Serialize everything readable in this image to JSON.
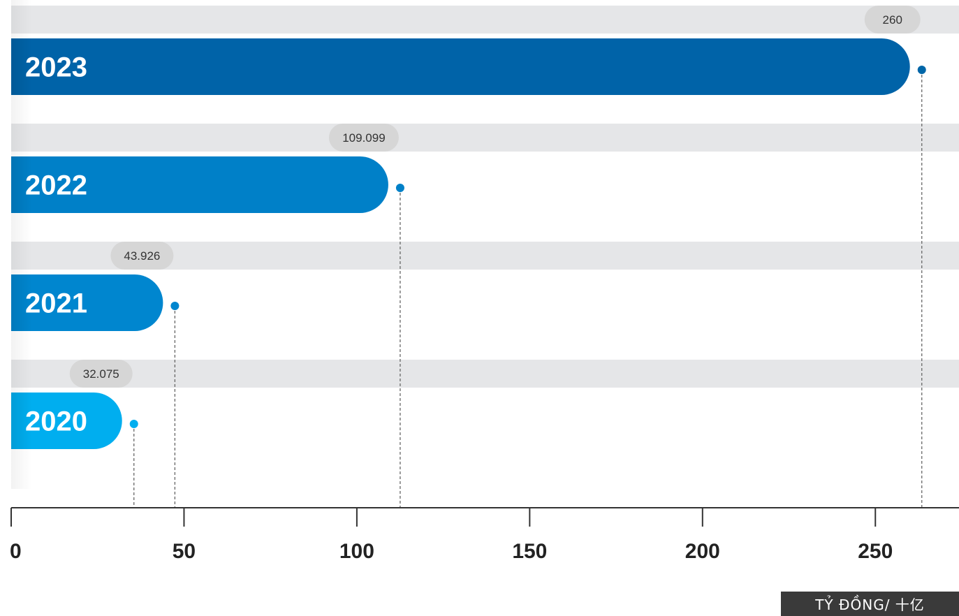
{
  "chart_data": {
    "type": "bar",
    "orientation": "horizontal",
    "categories": [
      "2023",
      "2022",
      "2021",
      "2020"
    ],
    "values": [
      260,
      109.099,
      43.926,
      32.075
    ],
    "value_labels": [
      "260",
      "109.099",
      "43.926",
      "32.075"
    ],
    "xticks": [
      "0",
      "50",
      "100",
      "150",
      "200",
      "250"
    ],
    "xlim": [
      0,
      272
    ],
    "unit_label": "TỶ ĐỒNG/ 十亿",
    "grid": false,
    "colors": [
      "#0063a8",
      "#0080c8",
      "#0086cf",
      "#00aeef"
    ],
    "track_color": "#e5e6e8",
    "badge_color": "#d6d6d6",
    "marker_colors": [
      "#0066a8",
      "#0080c8",
      "#0086cf",
      "#00aeef"
    ]
  }
}
